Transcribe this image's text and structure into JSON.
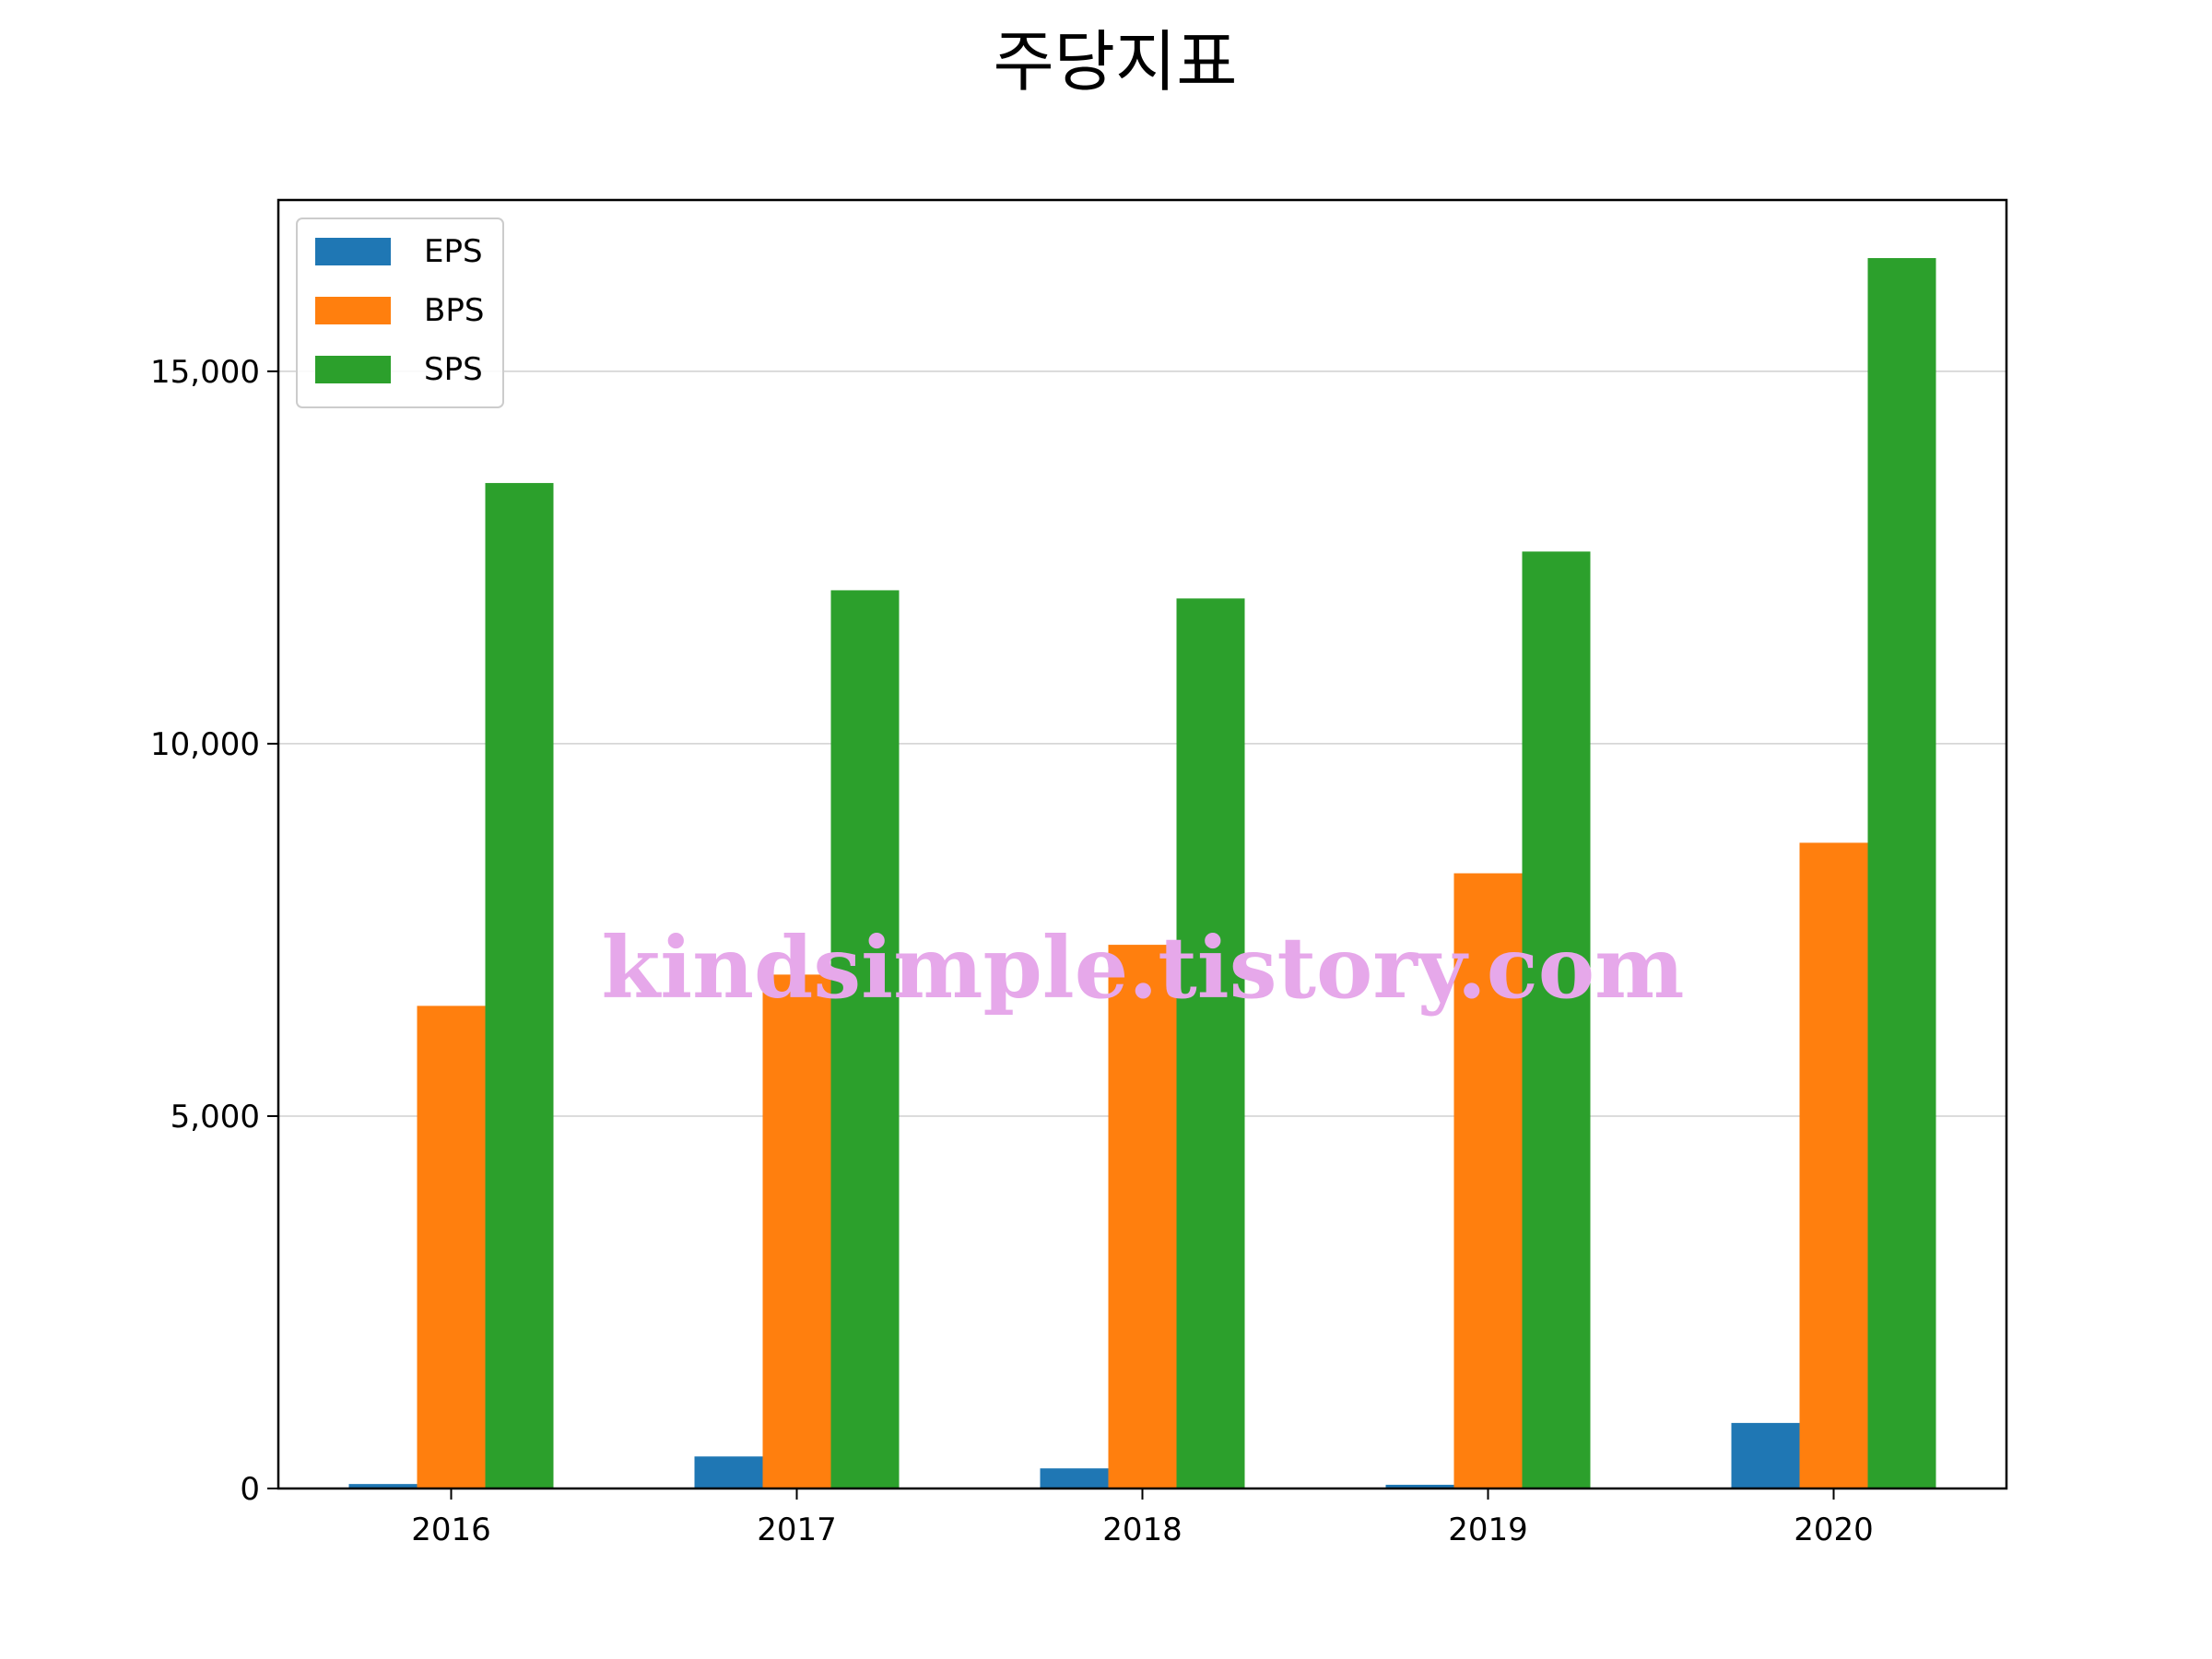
{
  "chart_data": {
    "type": "bar",
    "title": "주당지표",
    "xlabel": "",
    "ylabel": "",
    "categories": [
      "2016",
      "2017",
      "2018",
      "2019",
      "2020"
    ],
    "series": [
      {
        "name": "EPS",
        "color": "#1f77b4",
        "values": [
          60,
          430,
          270,
          50,
          880
        ]
      },
      {
        "name": "BPS",
        "color": "#ff7f0e",
        "values": [
          6480,
          6900,
          7300,
          8260,
          8670
        ]
      },
      {
        "name": "SPS",
        "color": "#2ca02c",
        "values": [
          13500,
          12060,
          11950,
          12580,
          16520
        ]
      }
    ],
    "ylim": [
      0,
      17300
    ],
    "yticks": [
      0,
      5000,
      10000,
      15000
    ],
    "ytick_labels": [
      "0",
      "5,000",
      "10,000",
      "15,000"
    ],
    "grid": "y",
    "legend": "top-left",
    "watermark": "kindsimple.tistory.com"
  }
}
